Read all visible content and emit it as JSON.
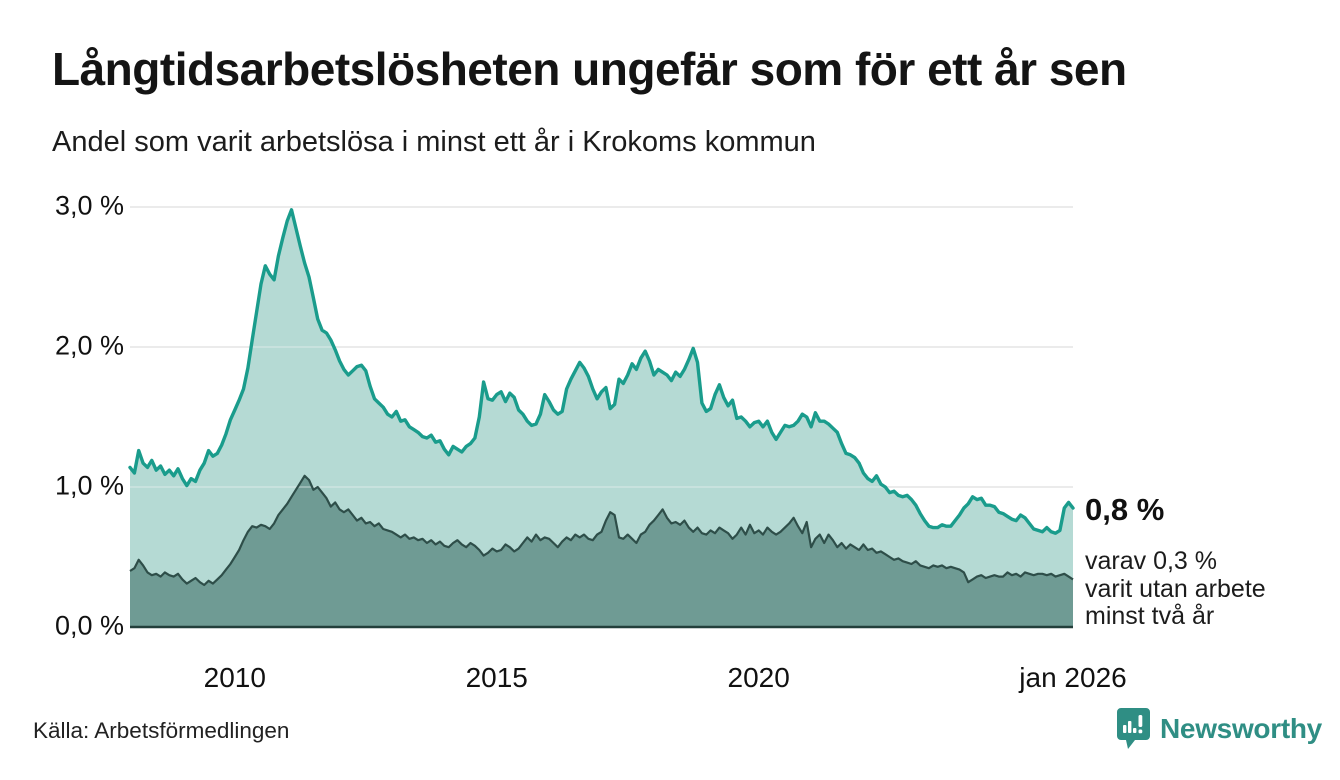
{
  "header": {
    "title": "Långtidsarbetslösheten ungefär som för ett år sen",
    "subtitle": "Andel som varit arbetslösa i minst ett år i Krokoms kommun"
  },
  "annotations": {
    "total_label": "0,8 %",
    "subset_line1": "varav 0,3 %",
    "subset_line2": "varit utan arbete",
    "subset_line3": "minst två år"
  },
  "footer": {
    "source": "Källa: Arbetsförmedlingen",
    "brand": "Newsworthy",
    "brand_icon": "speech-bubble-bar-chart-icon"
  },
  "colors": {
    "accent_teal": "#1a9c8c",
    "light_fill": "#a8d3cc",
    "dark_fill": "#6f9b94",
    "dark_line": "#2e4e49",
    "baseline": "#233f3b",
    "grid": "#e3e3e3",
    "grid_overlay": "rgba(255,255,255,0.3)",
    "logo_teal": "#2f8e84",
    "text": "#111111"
  },
  "chart_data": {
    "type": "area",
    "title": "Långtidsarbetslösheten ungefär som för ett år sen",
    "subtitle": "Andel som varit arbetslösa i minst ett år i Krokoms kommun",
    "unit": "%",
    "x_start": "2008-01",
    "x_end": "2026-01",
    "frequency": "monthly (values estimated from chart)",
    "ylim": [
      0,
      3.2
    ],
    "grid": true,
    "legend": "direct labels at line end",
    "y_ticks": [
      {
        "label": "0,0 %",
        "value": 0
      },
      {
        "label": "1,0 %",
        "value": 1
      },
      {
        "label": "2,0 %",
        "value": 2
      },
      {
        "label": "3,0 %",
        "value": 3
      }
    ],
    "x_ticks": [
      {
        "label": "2010",
        "t": 0.1111
      },
      {
        "label": "2015",
        "t": 0.3889
      },
      {
        "label": "2020",
        "t": 0.6667
      },
      {
        "label": "jan 2026",
        "t": 1.0
      }
    ],
    "series": [
      {
        "name": "Arbetslösa minst ett år (totalt)",
        "end_value": 0.8,
        "color": "#1a9c8c",
        "fill": "#a8d3cc",
        "values": [
          1.14,
          1.1,
          1.26,
          1.17,
          1.14,
          1.19,
          1.12,
          1.15,
          1.09,
          1.12,
          1.08,
          1.13,
          1.06,
          1.01,
          1.06,
          1.04,
          1.12,
          1.17,
          1.26,
          1.22,
          1.24,
          1.3,
          1.38,
          1.48,
          1.55,
          1.62,
          1.7,
          1.85,
          2.05,
          2.25,
          2.45,
          2.58,
          2.52,
          2.48,
          2.65,
          2.78,
          2.9,
          2.98,
          2.85,
          2.72,
          2.6,
          2.5,
          2.35,
          2.2,
          2.12,
          2.1,
          2.05,
          1.98,
          1.9,
          1.84,
          1.8,
          1.83,
          1.86,
          1.87,
          1.83,
          1.72,
          1.63,
          1.6,
          1.57,
          1.52,
          1.5,
          1.54,
          1.47,
          1.48,
          1.43,
          1.41,
          1.39,
          1.36,
          1.35,
          1.37,
          1.32,
          1.33,
          1.27,
          1.23,
          1.29,
          1.27,
          1.25,
          1.29,
          1.31,
          1.35,
          1.5,
          1.75,
          1.63,
          1.62,
          1.66,
          1.68,
          1.61,
          1.67,
          1.64,
          1.55,
          1.52,
          1.47,
          1.44,
          1.45,
          1.52,
          1.66,
          1.61,
          1.55,
          1.52,
          1.54,
          1.7,
          1.77,
          1.83,
          1.89,
          1.85,
          1.79,
          1.7,
          1.63,
          1.68,
          1.71,
          1.56,
          1.59,
          1.77,
          1.74,
          1.8,
          1.88,
          1.84,
          1.92,
          1.97,
          1.9,
          1.8,
          1.84,
          1.82,
          1.8,
          1.76,
          1.82,
          1.79,
          1.84,
          1.91,
          1.99,
          1.89,
          1.6,
          1.54,
          1.56,
          1.66,
          1.73,
          1.64,
          1.58,
          1.62,
          1.49,
          1.5,
          1.47,
          1.43,
          1.46,
          1.47,
          1.43,
          1.47,
          1.39,
          1.34,
          1.39,
          1.44,
          1.43,
          1.44,
          1.47,
          1.52,
          1.5,
          1.43,
          1.53,
          1.47,
          1.47,
          1.45,
          1.42,
          1.39,
          1.31,
          1.24,
          1.23,
          1.21,
          1.17,
          1.1,
          1.06,
          1.04,
          1.08,
          1.02,
          1.0,
          0.96,
          0.97,
          0.94,
          0.93,
          0.94,
          0.91,
          0.87,
          0.81,
          0.76,
          0.72,
          0.71,
          0.71,
          0.73,
          0.72,
          0.72,
          0.76,
          0.8,
          0.85,
          0.88,
          0.93,
          0.91,
          0.92,
          0.87,
          0.87,
          0.86,
          0.82,
          0.81,
          0.79,
          0.77,
          0.76,
          0.8,
          0.78,
          0.74,
          0.7,
          0.69,
          0.68,
          0.71,
          0.68,
          0.67,
          0.69,
          0.85,
          0.89,
          0.85
        ]
      },
      {
        "name": "varav utan arbete minst två år",
        "end_value": 0.3,
        "color": "#2e4e49",
        "fill": "#6f9b94",
        "values": [
          0.4,
          0.42,
          0.48,
          0.44,
          0.39,
          0.37,
          0.38,
          0.36,
          0.39,
          0.37,
          0.36,
          0.38,
          0.34,
          0.31,
          0.33,
          0.35,
          0.32,
          0.3,
          0.33,
          0.31,
          0.34,
          0.37,
          0.41,
          0.45,
          0.5,
          0.55,
          0.62,
          0.68,
          0.72,
          0.71,
          0.73,
          0.72,
          0.7,
          0.74,
          0.8,
          0.84,
          0.88,
          0.93,
          0.98,
          1.03,
          1.08,
          1.05,
          0.98,
          1.0,
          0.96,
          0.92,
          0.86,
          0.89,
          0.84,
          0.82,
          0.84,
          0.8,
          0.76,
          0.78,
          0.74,
          0.75,
          0.72,
          0.74,
          0.7,
          0.69,
          0.68,
          0.66,
          0.64,
          0.66,
          0.63,
          0.64,
          0.62,
          0.63,
          0.6,
          0.62,
          0.59,
          0.61,
          0.58,
          0.57,
          0.6,
          0.62,
          0.59,
          0.57,
          0.6,
          0.58,
          0.55,
          0.51,
          0.53,
          0.56,
          0.54,
          0.55,
          0.59,
          0.57,
          0.54,
          0.56,
          0.6,
          0.64,
          0.61,
          0.66,
          0.62,
          0.64,
          0.63,
          0.6,
          0.57,
          0.61,
          0.64,
          0.62,
          0.66,
          0.64,
          0.66,
          0.63,
          0.62,
          0.66,
          0.68,
          0.76,
          0.82,
          0.8,
          0.64,
          0.63,
          0.66,
          0.63,
          0.6,
          0.66,
          0.68,
          0.73,
          0.76,
          0.8,
          0.84,
          0.78,
          0.74,
          0.75,
          0.73,
          0.76,
          0.71,
          0.68,
          0.71,
          0.67,
          0.66,
          0.69,
          0.67,
          0.71,
          0.69,
          0.67,
          0.63,
          0.66,
          0.71,
          0.66,
          0.73,
          0.67,
          0.69,
          0.66,
          0.71,
          0.68,
          0.66,
          0.68,
          0.71,
          0.74,
          0.78,
          0.72,
          0.67,
          0.75,
          0.57,
          0.63,
          0.66,
          0.6,
          0.66,
          0.62,
          0.57,
          0.6,
          0.56,
          0.59,
          0.57,
          0.55,
          0.59,
          0.55,
          0.56,
          0.53,
          0.54,
          0.52,
          0.5,
          0.48,
          0.49,
          0.47,
          0.46,
          0.45,
          0.47,
          0.44,
          0.43,
          0.42,
          0.44,
          0.43,
          0.44,
          0.42,
          0.43,
          0.42,
          0.41,
          0.39,
          0.32,
          0.34,
          0.36,
          0.37,
          0.35,
          0.36,
          0.37,
          0.36,
          0.36,
          0.39,
          0.37,
          0.38,
          0.36,
          0.39,
          0.38,
          0.37,
          0.38,
          0.38,
          0.37,
          0.38,
          0.36,
          0.37,
          0.38,
          0.36,
          0.34
        ]
      }
    ]
  }
}
